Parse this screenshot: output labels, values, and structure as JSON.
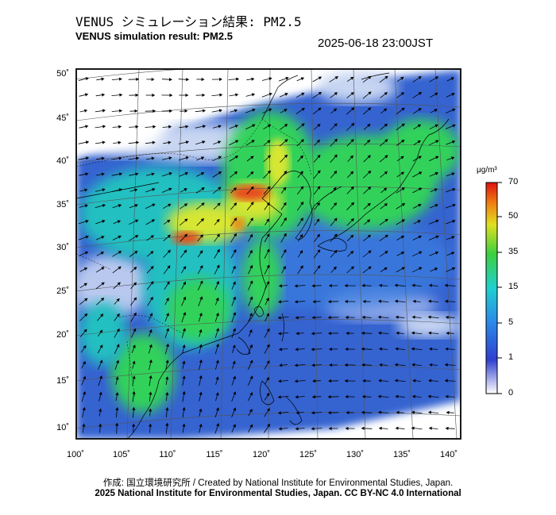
{
  "header": {
    "title_jp": "VENUS シミュレーション結果: PM2.5",
    "title_en": "VENUS simulation result: PM2.5",
    "timestamp": "2025-06-18 23:00JST"
  },
  "map": {
    "lat_labels": [
      "50˚",
      "45˚",
      "40˚",
      "35˚",
      "30˚",
      "25˚",
      "20˚",
      "15˚",
      "10˚"
    ],
    "lon_labels": [
      "100˚",
      "105˚",
      "110˚",
      "115˚",
      "120˚",
      "125˚",
      "130˚",
      "135˚",
      "140˚"
    ],
    "lat_values": [
      50,
      45,
      40,
      35,
      30,
      25,
      20,
      15,
      10
    ],
    "lon_values": [
      100,
      105,
      110,
      115,
      120,
      125,
      130,
      135,
      140
    ],
    "colors": {
      "ocean_clean": "#2f55c8",
      "low": "#3a7fe0",
      "mid": "#22c0c0",
      "moderate": "#31d25a",
      "high": "#d7e630",
      "very_high": "#e84a1a"
    }
  },
  "colorbar": {
    "unit": "μg/m³",
    "ticks": [
      "70",
      "50",
      "35",
      "15",
      "5",
      "1",
      "0"
    ]
  },
  "footer": {
    "credit_jp_en": "作成: 国立環境研究所 / Created by National Institute for Environmental Studies, Japan.",
    "license": "2025 National Institute for Environmental Studies, Japan. CC BY-NC 4.0 International"
  }
}
